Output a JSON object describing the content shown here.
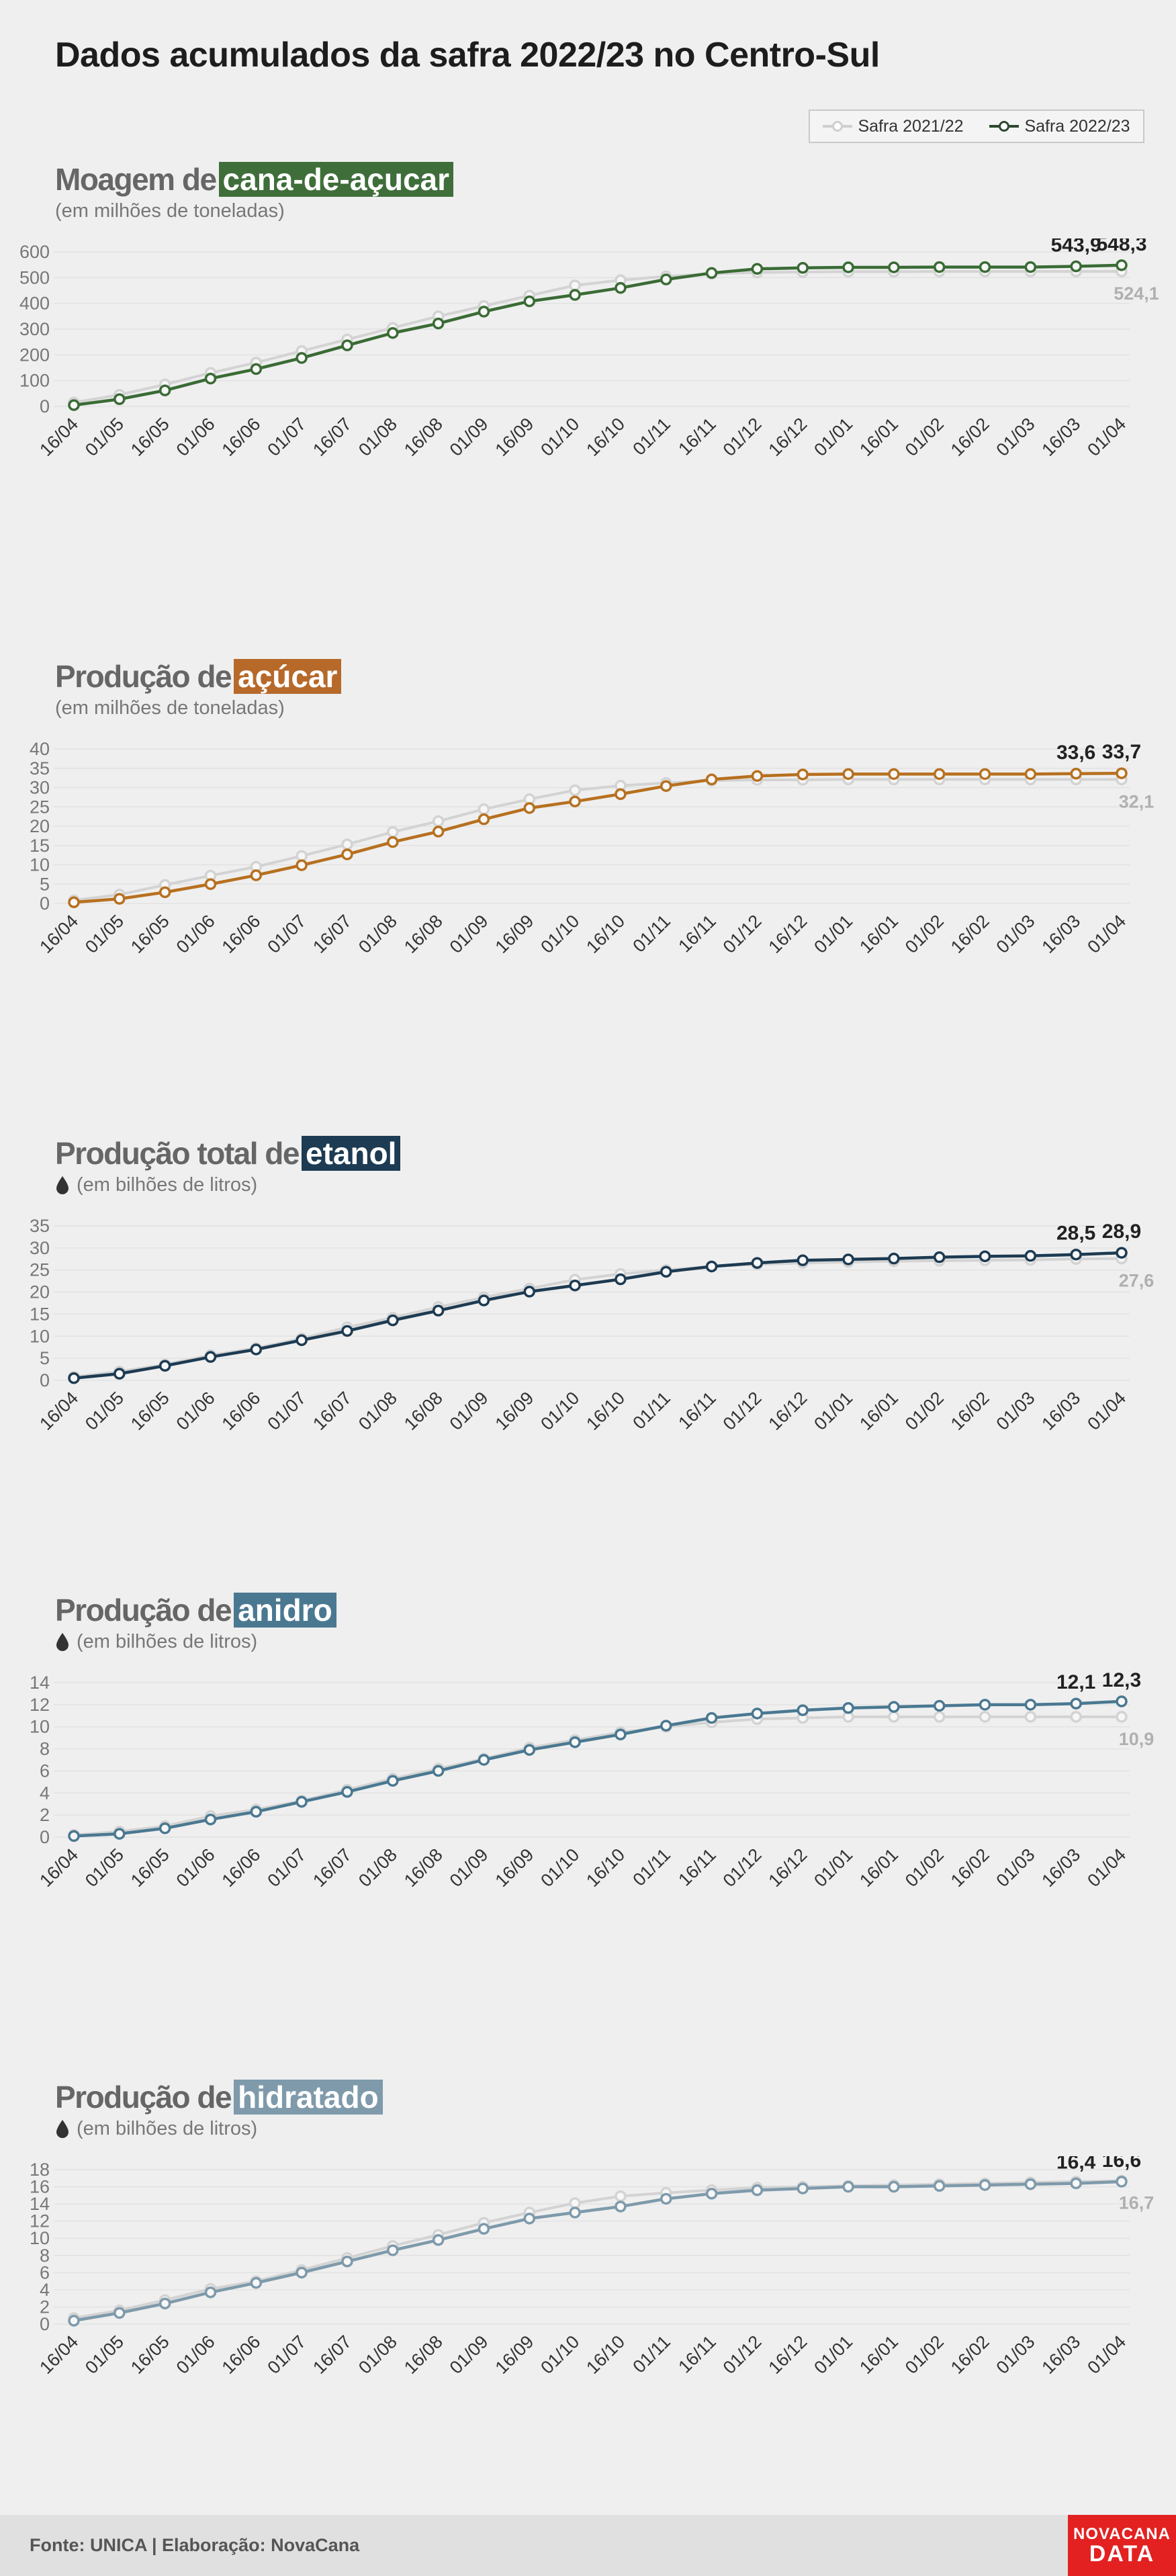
{
  "title": "Dados acumulados da safra 2022/23 no Centro-Sul",
  "legend": [
    {
      "label": "Safra 2021/22",
      "color": "#cfcfcf"
    },
    {
      "label": "Safra 2022/23",
      "color": "#2e4a30"
    }
  ],
  "panels": [
    {
      "prefix": "Moagem de",
      "highlight": "cana-de-açucar",
      "unit": "(em milhões de toneladas)",
      "color": "#3f6e3a",
      "drop_icon": false
    },
    {
      "prefix": "Produção de",
      "highlight": "açúcar",
      "unit": "(em milhões de toneladas)",
      "color": "#b7692a",
      "drop_icon": false
    },
    {
      "prefix": "Produção total de",
      "highlight": "etanol",
      "unit": "(em bilhões de litros)",
      "color": "#1d3b52",
      "drop_icon": true
    },
    {
      "prefix": "Produção de",
      "highlight": "anidro",
      "unit": "(em bilhões de litros)",
      "color": "#4a7891",
      "drop_icon": true
    },
    {
      "prefix": "Produção de",
      "highlight": "hidratado",
      "unit": "(em bilhões de litros)",
      "color": "#7e9aab",
      "drop_icon": true
    }
  ],
  "chart_data": [
    {
      "type": "line",
      "title": "Moagem de cana-de-açucar",
      "ylabel": "(em milhões de toneladas)",
      "categories": [
        "16/04",
        "01/05",
        "16/05",
        "01/06",
        "16/06",
        "01/07",
        "16/07",
        "01/08",
        "16/08",
        "01/09",
        "16/09",
        "01/10",
        "16/10",
        "01/11",
        "16/11",
        "01/12",
        "16/12",
        "01/01",
        "16/01",
        "01/02",
        "16/02",
        "01/03",
        "16/03",
        "01/04"
      ],
      "ylim": [
        0,
        600
      ],
      "yticks": [
        0,
        100,
        200,
        300,
        400,
        500,
        600
      ],
      "series": [
        {
          "name": "Safra 2021/22",
          "color": "#d3d3d3",
          "values": [
            15,
            45,
            85,
            130,
            170,
            215,
            260,
            305,
            350,
            390,
            430,
            470,
            490,
            505,
            515,
            520,
            522,
            523,
            523,
            524,
            524,
            524,
            524,
            524.1
          ],
          "end_label": "524,1"
        },
        {
          "name": "Safra 2022/23",
          "color": "#3a6b35",
          "values": [
            5,
            28,
            62,
            108,
            145,
            188,
            237,
            285,
            322,
            368,
            408,
            433,
            460,
            493,
            518,
            534,
            538,
            540,
            540,
            541,
            541,
            541,
            543.9,
            548.3
          ],
          "labels": {
            "22": "543,9",
            "23": "548,3"
          }
        }
      ]
    },
    {
      "type": "line",
      "title": "Produção de açúcar",
      "ylabel": "(em milhões de toneladas)",
      "categories": [
        "16/04",
        "01/05",
        "16/05",
        "01/06",
        "16/06",
        "01/07",
        "16/07",
        "01/08",
        "16/08",
        "01/09",
        "16/09",
        "01/10",
        "16/10",
        "01/11",
        "16/11",
        "01/12",
        "16/12",
        "01/01",
        "16/01",
        "01/02",
        "16/02",
        "01/03",
        "16/03",
        "01/04"
      ],
      "ylim": [
        0,
        40
      ],
      "yticks": [
        0,
        5,
        10,
        15,
        20,
        25,
        30,
        35,
        40
      ],
      "series": [
        {
          "name": "Safra 2021/22",
          "color": "#d3d3d3",
          "values": [
            0.8,
            2.3,
            4.8,
            7.2,
            9.5,
            12.3,
            15.3,
            18.5,
            21.3,
            24.4,
            27.0,
            29.3,
            30.5,
            31.2,
            31.8,
            32.0,
            32.0,
            32.1,
            32.1,
            32.1,
            32.1,
            32.1,
            32.1,
            32.1
          ],
          "end_label": "32,1"
        },
        {
          "name": "Safra 2022/23",
          "color": "#b7701f",
          "values": [
            0.3,
            1.2,
            2.9,
            5.0,
            7.3,
            9.9,
            12.7,
            15.9,
            18.6,
            21.8,
            24.7,
            26.4,
            28.3,
            30.4,
            32.1,
            33.0,
            33.4,
            33.5,
            33.5,
            33.5,
            33.5,
            33.5,
            33.6,
            33.7
          ],
          "labels": {
            "22": "33,6",
            "23": "33,7"
          }
        }
      ]
    },
    {
      "type": "line",
      "title": "Produção total de etanol",
      "ylabel": "(em bilhões de litros)",
      "categories": [
        "16/04",
        "01/05",
        "16/05",
        "01/06",
        "16/06",
        "01/07",
        "16/07",
        "01/08",
        "16/08",
        "01/09",
        "16/09",
        "01/10",
        "16/10",
        "01/11",
        "16/11",
        "01/12",
        "16/12",
        "01/01",
        "16/01",
        "01/02",
        "16/02",
        "01/03",
        "16/03",
        "01/04"
      ],
      "ylim": [
        0,
        35
      ],
      "yticks": [
        0,
        5,
        10,
        15,
        20,
        25,
        30,
        35
      ],
      "series": [
        {
          "name": "Safra 2021/22",
          "color": "#d3d3d3",
          "values": [
            0.8,
            2.0,
            3.6,
            5.7,
            7.3,
            9.5,
            12.0,
            14.2,
            16.6,
            18.8,
            20.8,
            22.8,
            24.1,
            25.0,
            25.8,
            26.3,
            26.6,
            26.8,
            27.0,
            27.1,
            27.2,
            27.3,
            27.5,
            27.6
          ],
          "end_label": "27,6"
        },
        {
          "name": "Safra 2022/23",
          "color": "#1d3b52",
          "values": [
            0.5,
            1.5,
            3.3,
            5.3,
            7.0,
            9.1,
            11.2,
            13.6,
            15.8,
            18.1,
            20.1,
            21.5,
            22.9,
            24.6,
            25.8,
            26.6,
            27.2,
            27.4,
            27.6,
            27.9,
            28.1,
            28.2,
            28.5,
            28.9
          ],
          "labels": {
            "22": "28,5",
            "23": "28,9"
          }
        }
      ]
    },
    {
      "type": "line",
      "title": "Produção de anidro",
      "ylabel": "(em bilhões de litros)",
      "categories": [
        "16/04",
        "01/05",
        "16/05",
        "01/06",
        "16/06",
        "01/07",
        "16/07",
        "01/08",
        "16/08",
        "01/09",
        "16/09",
        "01/10",
        "16/10",
        "01/11",
        "16/11",
        "01/12",
        "16/12",
        "01/01",
        "16/01",
        "01/02",
        "16/02",
        "01/03",
        "16/03",
        "01/04"
      ],
      "ylim": [
        0,
        14
      ],
      "yticks": [
        0,
        2,
        4,
        6,
        8,
        10,
        12,
        14
      ],
      "series": [
        {
          "name": "Safra 2021/22",
          "color": "#d3d3d3",
          "values": [
            0.2,
            0.5,
            1.0,
            1.9,
            2.5,
            3.3,
            4.3,
            5.3,
            6.2,
            7.1,
            8.1,
            8.8,
            9.5,
            10.0,
            10.4,
            10.7,
            10.8,
            10.9,
            10.9,
            10.9,
            10.9,
            10.9,
            10.9,
            10.9
          ],
          "end_label": "10,9"
        },
        {
          "name": "Safra 2022/23",
          "color": "#4a7891",
          "values": [
            0.1,
            0.3,
            0.8,
            1.6,
            2.3,
            3.2,
            4.1,
            5.1,
            6.0,
            7.0,
            7.9,
            8.6,
            9.3,
            10.1,
            10.8,
            11.2,
            11.5,
            11.7,
            11.8,
            11.9,
            12.0,
            12.0,
            12.1,
            12.3
          ],
          "labels": {
            "22": "12,1",
            "23": "12,3"
          }
        }
      ]
    },
    {
      "type": "line",
      "title": "Produção de hidratado",
      "ylabel": "(em bilhões de litros)",
      "categories": [
        "16/04",
        "01/05",
        "16/05",
        "01/06",
        "16/06",
        "01/07",
        "16/07",
        "01/08",
        "16/08",
        "01/09",
        "16/09",
        "01/10",
        "16/10",
        "01/11",
        "16/11",
        "01/12",
        "16/12",
        "01/01",
        "16/01",
        "01/02",
        "16/02",
        "01/03",
        "16/03",
        "01/04"
      ],
      "ylim": [
        0,
        18
      ],
      "yticks": [
        0,
        2,
        4,
        6,
        8,
        10,
        12,
        14,
        16,
        18
      ],
      "series": [
        {
          "name": "Safra 2021/22",
          "color": "#d3d3d3",
          "values": [
            0.7,
            1.6,
            2.8,
            4.1,
            5.0,
            6.3,
            7.7,
            9.1,
            10.4,
            11.8,
            13.0,
            14.1,
            14.9,
            15.3,
            15.6,
            15.9,
            16.0,
            16.1,
            16.2,
            16.3,
            16.4,
            16.5,
            16.6,
            16.7
          ],
          "end_label": "16,7"
        },
        {
          "name": "Safra 2022/23",
          "color": "#7e9aab",
          "values": [
            0.4,
            1.3,
            2.4,
            3.7,
            4.8,
            6.0,
            7.3,
            8.6,
            9.8,
            11.1,
            12.3,
            13.0,
            13.7,
            14.6,
            15.2,
            15.6,
            15.8,
            16.0,
            16.0,
            16.1,
            16.2,
            16.3,
            16.4,
            16.6
          ],
          "labels": {
            "22": "16,4",
            "23": "16,6"
          }
        }
      ]
    }
  ],
  "footer": {
    "source": "Fonte: UNICA | Elaboração: NovaCana",
    "logo_line1": "NOVACANA",
    "logo_line2": "DATA"
  }
}
